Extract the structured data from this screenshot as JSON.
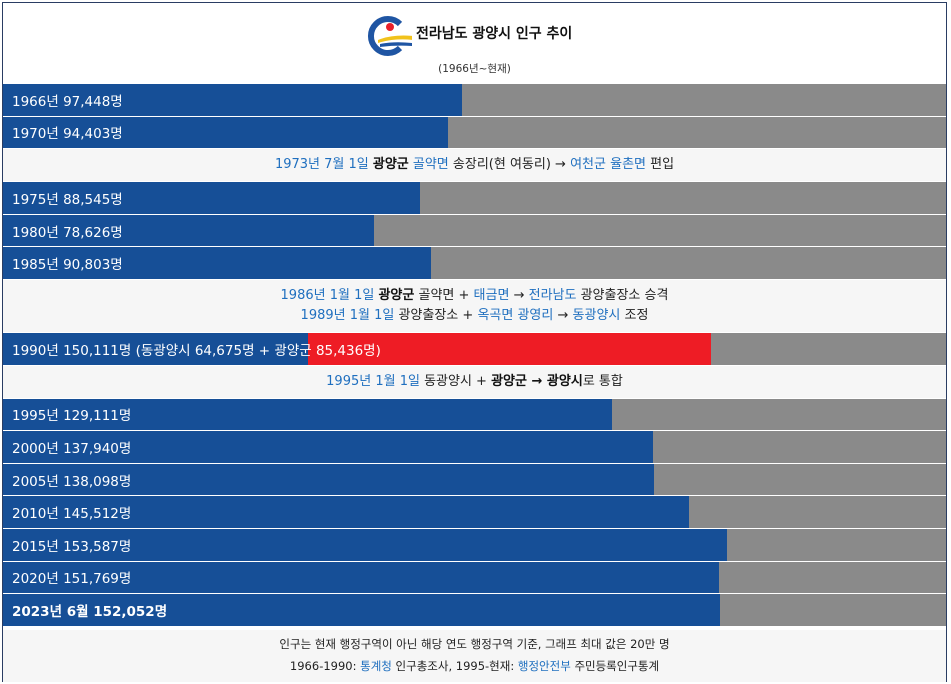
{
  "header": {
    "title": "전라남도 광양시 인구 추이",
    "subtitle": "(1966년~현재)",
    "logo_colors": {
      "ring": "#1f55a3",
      "dot": "#e8202a",
      "wave": "#f1c21b"
    }
  },
  "chart_data": {
    "type": "bar",
    "orientation": "horizontal",
    "xlim": [
      0,
      200000
    ],
    "colors": {
      "primary": "#164f97",
      "secondary": "#ee1c25",
      "track": "#8a8a8a"
    },
    "rows": [
      {
        "year": "1966년",
        "value": 97448,
        "label": "1966년 97,448명"
      },
      {
        "year": "1970년",
        "value": 94403,
        "label": "1970년 94,403명"
      },
      {
        "year": "1975년",
        "value": 88545,
        "label": "1975년 88,545명"
      },
      {
        "year": "1980년",
        "value": 78626,
        "label": "1980년 78,626명"
      },
      {
        "year": "1985년",
        "value": 90803,
        "label": "1985년 90,803명"
      },
      {
        "year": "1990년",
        "value": 150111,
        "parts": [
          64675,
          85436
        ],
        "label": "1990년 150,111명 (동광양시 64,675명 + 광양군 85,436명)"
      },
      {
        "year": "1995년",
        "value": 129111,
        "label": "1995년 129,111명"
      },
      {
        "year": "2000년",
        "value": 137940,
        "label": "2000년 137,940명"
      },
      {
        "year": "2005년",
        "value": 138098,
        "label": "2005년 138,098명"
      },
      {
        "year": "2010년",
        "value": 145512,
        "label": "2010년 145,512명"
      },
      {
        "year": "2015년",
        "value": 153587,
        "label": "2015년 153,587명"
      },
      {
        "year": "2020년",
        "value": 151769,
        "label": "2020년 151,769명"
      },
      {
        "year": "2023년 6월",
        "value": 152052,
        "label": "2023년 6월 152,052명",
        "bold": true
      }
    ]
  },
  "notes": {
    "n1973": {
      "date": "1973년 7월 1일",
      "a": "광양군",
      "b": "골약면",
      "c": "송장리(현 여동리) →",
      "d": "여천군 율촌면",
      "e": "편입"
    },
    "n1986": {
      "date": "1986년 1월 1일",
      "a": "광양군",
      "b": "골약면 +",
      "c": "태금면",
      "d": "→",
      "e": "전라남도",
      "f": "광양출장소 승격"
    },
    "n1989": {
      "date": "1989년 1월 1일",
      "a": "광양출장소 +",
      "b": "옥곡면 광영리",
      "c": "→",
      "d": "동광양시",
      "e": "조정"
    },
    "n1995": {
      "date": "1995년 1월 1일",
      "a": "동광양시 +",
      "b": "광양군 → 광양시",
      "c": "로 통합"
    }
  },
  "footer": {
    "line1": "인구는 현재 행정구역이 아닌 해당 연도 행정구역 기준, 그래프 최대 값은 20만 명",
    "line2_a": "1966-1990:",
    "line2_b": "통계청",
    "line2_c": "인구총조사, 1995-현재:",
    "line2_d": "행정안전부",
    "line2_e": "주민등록인구통계"
  }
}
